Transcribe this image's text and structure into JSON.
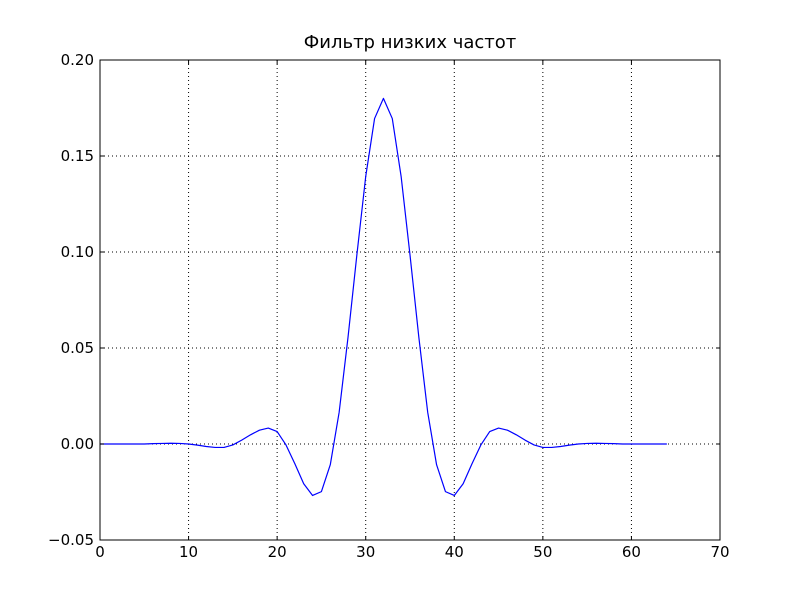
{
  "chart_data": {
    "type": "line",
    "title": "Фильтр низких частот",
    "xlabel": "",
    "ylabel": "",
    "xlim": [
      0,
      70
    ],
    "ylim": [
      -0.05,
      0.2
    ],
    "grid": true,
    "x_ticks": [
      0,
      10,
      20,
      30,
      40,
      50,
      60,
      70
    ],
    "x_tick_labels": [
      "0",
      "10",
      "20",
      "30",
      "40",
      "50",
      "60",
      "70"
    ],
    "y_ticks": [
      -0.05,
      0.0,
      0.05,
      0.1,
      0.15,
      0.2
    ],
    "y_tick_labels": [
      "−0.05",
      "0.00",
      "0.05",
      "0.10",
      "0.15",
      "0.20"
    ],
    "series": [
      {
        "color": "#0000ff",
        "x": [
          0,
          1,
          2,
          3,
          4,
          5,
          6,
          7,
          8,
          9,
          10,
          11,
          12,
          13,
          14,
          15,
          16,
          17,
          18,
          19,
          20,
          21,
          22,
          23,
          24,
          25,
          26,
          27,
          28,
          29,
          30,
          31,
          32,
          33,
          34,
          35,
          36,
          37,
          38,
          39,
          40,
          41,
          42,
          43,
          44,
          45,
          46,
          47,
          48,
          49,
          50,
          51,
          52,
          53,
          54,
          55,
          56,
          57,
          58,
          59,
          60,
          61,
          62,
          63,
          64
        ],
        "values": [
          0.0,
          0.0,
          0.0,
          0.0,
          0.0,
          0.0,
          0.0002,
          0.0003,
          0.0004,
          0.0003,
          0.0,
          -0.0006,
          -0.0013,
          -0.0018,
          -0.0018,
          -0.0005,
          0.002,
          0.0048,
          0.0072,
          0.0083,
          0.0065,
          -0.0005,
          -0.0103,
          -0.0207,
          -0.0268,
          -0.0248,
          -0.0108,
          0.0165,
          0.0555,
          0.0985,
          0.1393,
          0.1695,
          0.18,
          0.1695,
          0.1393,
          0.0985,
          0.0555,
          0.0165,
          -0.0108,
          -0.0248,
          -0.0268,
          -0.0207,
          -0.0103,
          -0.0005,
          0.0065,
          0.0083,
          0.0072,
          0.0048,
          0.002,
          -0.0005,
          -0.0018,
          -0.0018,
          -0.0013,
          -0.0006,
          0.0,
          0.0003,
          0.0004,
          0.0003,
          0.0002,
          0.0,
          0.0,
          0.0,
          0.0,
          0.0,
          0.0
        ]
      }
    ]
  }
}
